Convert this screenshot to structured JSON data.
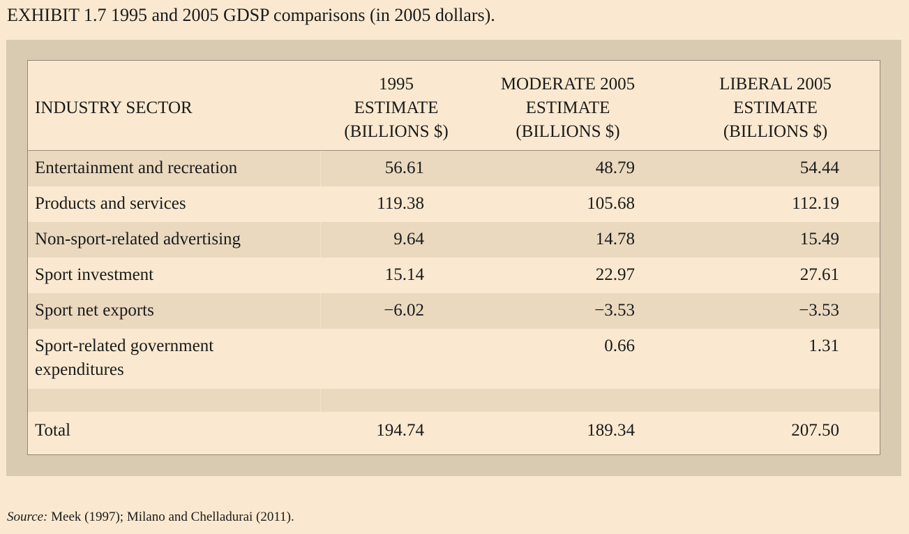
{
  "title": "EXHIBIT 1.7 1995 and 2005 GDSP comparisons (in 2005 dollars).",
  "table": {
    "headers": [
      "INDUSTRY SECTOR",
      "1995\nESTIMATE\n(BILLIONS $)",
      "MODERATE 2005\nESTIMATE\n(BILLIONS $)",
      "LIBERAL 2005\nESTIMATE\n(BILLIONS $)"
    ],
    "rows": [
      [
        "Entertainment and recreation",
        "56.61",
        "48.79",
        "54.44"
      ],
      [
        "Products and services",
        "119.38",
        "105.68",
        "112.19"
      ],
      [
        "Non-sport-related advertising",
        "9.64",
        "14.78",
        "15.49"
      ],
      [
        "Sport investment",
        "15.14",
        "22.97",
        "27.61"
      ],
      [
        "Sport net exports",
        "−6.02",
        "−3.53",
        "−3.53"
      ],
      [
        "Sport-related government expenditures",
        "",
        "0.66",
        "1.31"
      ],
      [
        "",
        "",
        "",
        ""
      ],
      [
        "Total",
        "194.74",
        "189.34",
        "207.50"
      ]
    ]
  },
  "source": {
    "label": "Source:",
    "text": " Meek (1997); Milano and Chelladurai (2011)."
  }
}
